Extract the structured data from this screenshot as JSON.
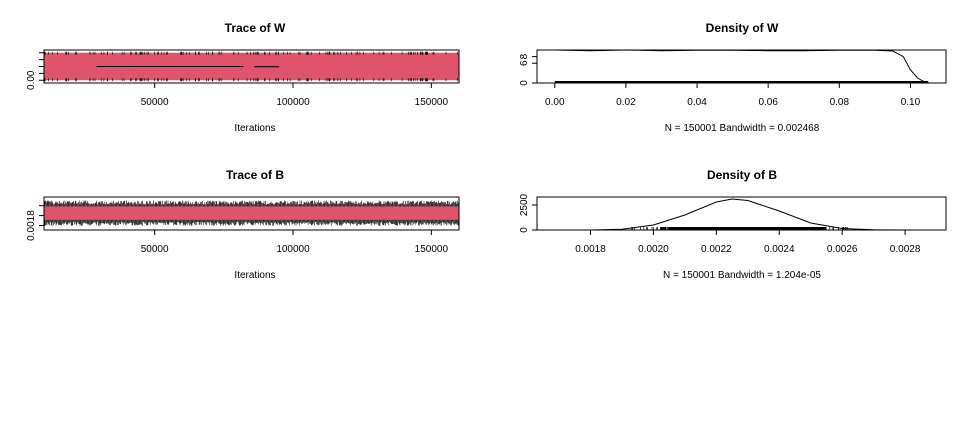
{
  "chart_data": [
    {
      "id": "trace_w",
      "type": "line",
      "title": "Trace of W",
      "xlabel": "Iterations",
      "ylabel": "",
      "xlim": [
        10000,
        160000
      ],
      "ylim": [
        -0.01,
        0.11
      ],
      "x_ticks": [
        "50000",
        "100000",
        "150000"
      ],
      "y_ticks": [
        "0.00"
      ],
      "series": [
        {
          "color": "#DF536B",
          "values": {
            "x_start": 10000,
            "x_end": 160000,
            "y_min": 0.0,
            "y_max": 0.1
          }
        }
      ],
      "annotations": {
        "flat_segments": [
          {
            "x": [
              29000,
              82000
            ],
            "y": 0.05
          },
          {
            "x": [
              86000,
              95000
            ],
            "y": 0.049
          }
        ]
      }
    },
    {
      "id": "density_w",
      "type": "line",
      "title": "Density of W",
      "xlabel": "N = 150001   Bandwidth = 0.002468",
      "xlim": [
        -0.005,
        0.11
      ],
      "ylim": [
        0,
        10
      ],
      "x_ticks": [
        "0.00",
        "0.02",
        "0.04",
        "0.06",
        "0.08",
        "0.10"
      ],
      "y_ticks": [
        "0",
        "6",
        "8"
      ],
      "series": [
        {
          "color": "#000000",
          "x": [
            0.0,
            0.01,
            0.02,
            0.03,
            0.04,
            0.05,
            0.06,
            0.07,
            0.08,
            0.09,
            0.095,
            0.098,
            0.1,
            0.102,
            0.104,
            0.105
          ],
          "y": [
            10.0,
            9.8,
            10.0,
            9.8,
            9.9,
            9.9,
            9.8,
            9.8,
            9.9,
            9.9,
            9.7,
            8.0,
            4.0,
            1.5,
            0.3,
            0.0
          ]
        }
      ]
    },
    {
      "id": "trace_b",
      "type": "line",
      "title": "Trace of B",
      "xlabel": "Iterations",
      "xlim": [
        10000,
        160000
      ],
      "ylim": [
        0.00162,
        0.00295
      ],
      "x_ticks": [
        "50000",
        "100000",
        "150000"
      ],
      "y_ticks": [
        "0.0018"
      ],
      "series": [
        {
          "color": "#DF536B",
          "values": {
            "x_start": 10000,
            "x_end": 160000,
            "y_min": 0.00195,
            "y_max": 0.00265
          }
        }
      ]
    },
    {
      "id": "density_b",
      "type": "line",
      "title": "Density of B",
      "xlabel": "N = 150001   Bandwidth = 1.204e-05",
      "xlim": [
        0.00163,
        0.00293
      ],
      "ylim": [
        0,
        3300
      ],
      "x_ticks": [
        "0.0018",
        "0.0020",
        "0.0022",
        "0.0024",
        "0.0026",
        "0.0028"
      ],
      "y_ticks": [
        "0",
        "2500"
      ],
      "series": [
        {
          "color": "#000000",
          "x": [
            0.0018,
            0.0019,
            0.002,
            0.0021,
            0.0022,
            0.00225,
            0.0023,
            0.0024,
            0.0025,
            0.0026,
            0.0027,
            0.0028
          ],
          "y": [
            0,
            80,
            500,
            1500,
            2800,
            3100,
            2950,
            1900,
            700,
            150,
            20,
            0
          ]
        }
      ]
    }
  ]
}
